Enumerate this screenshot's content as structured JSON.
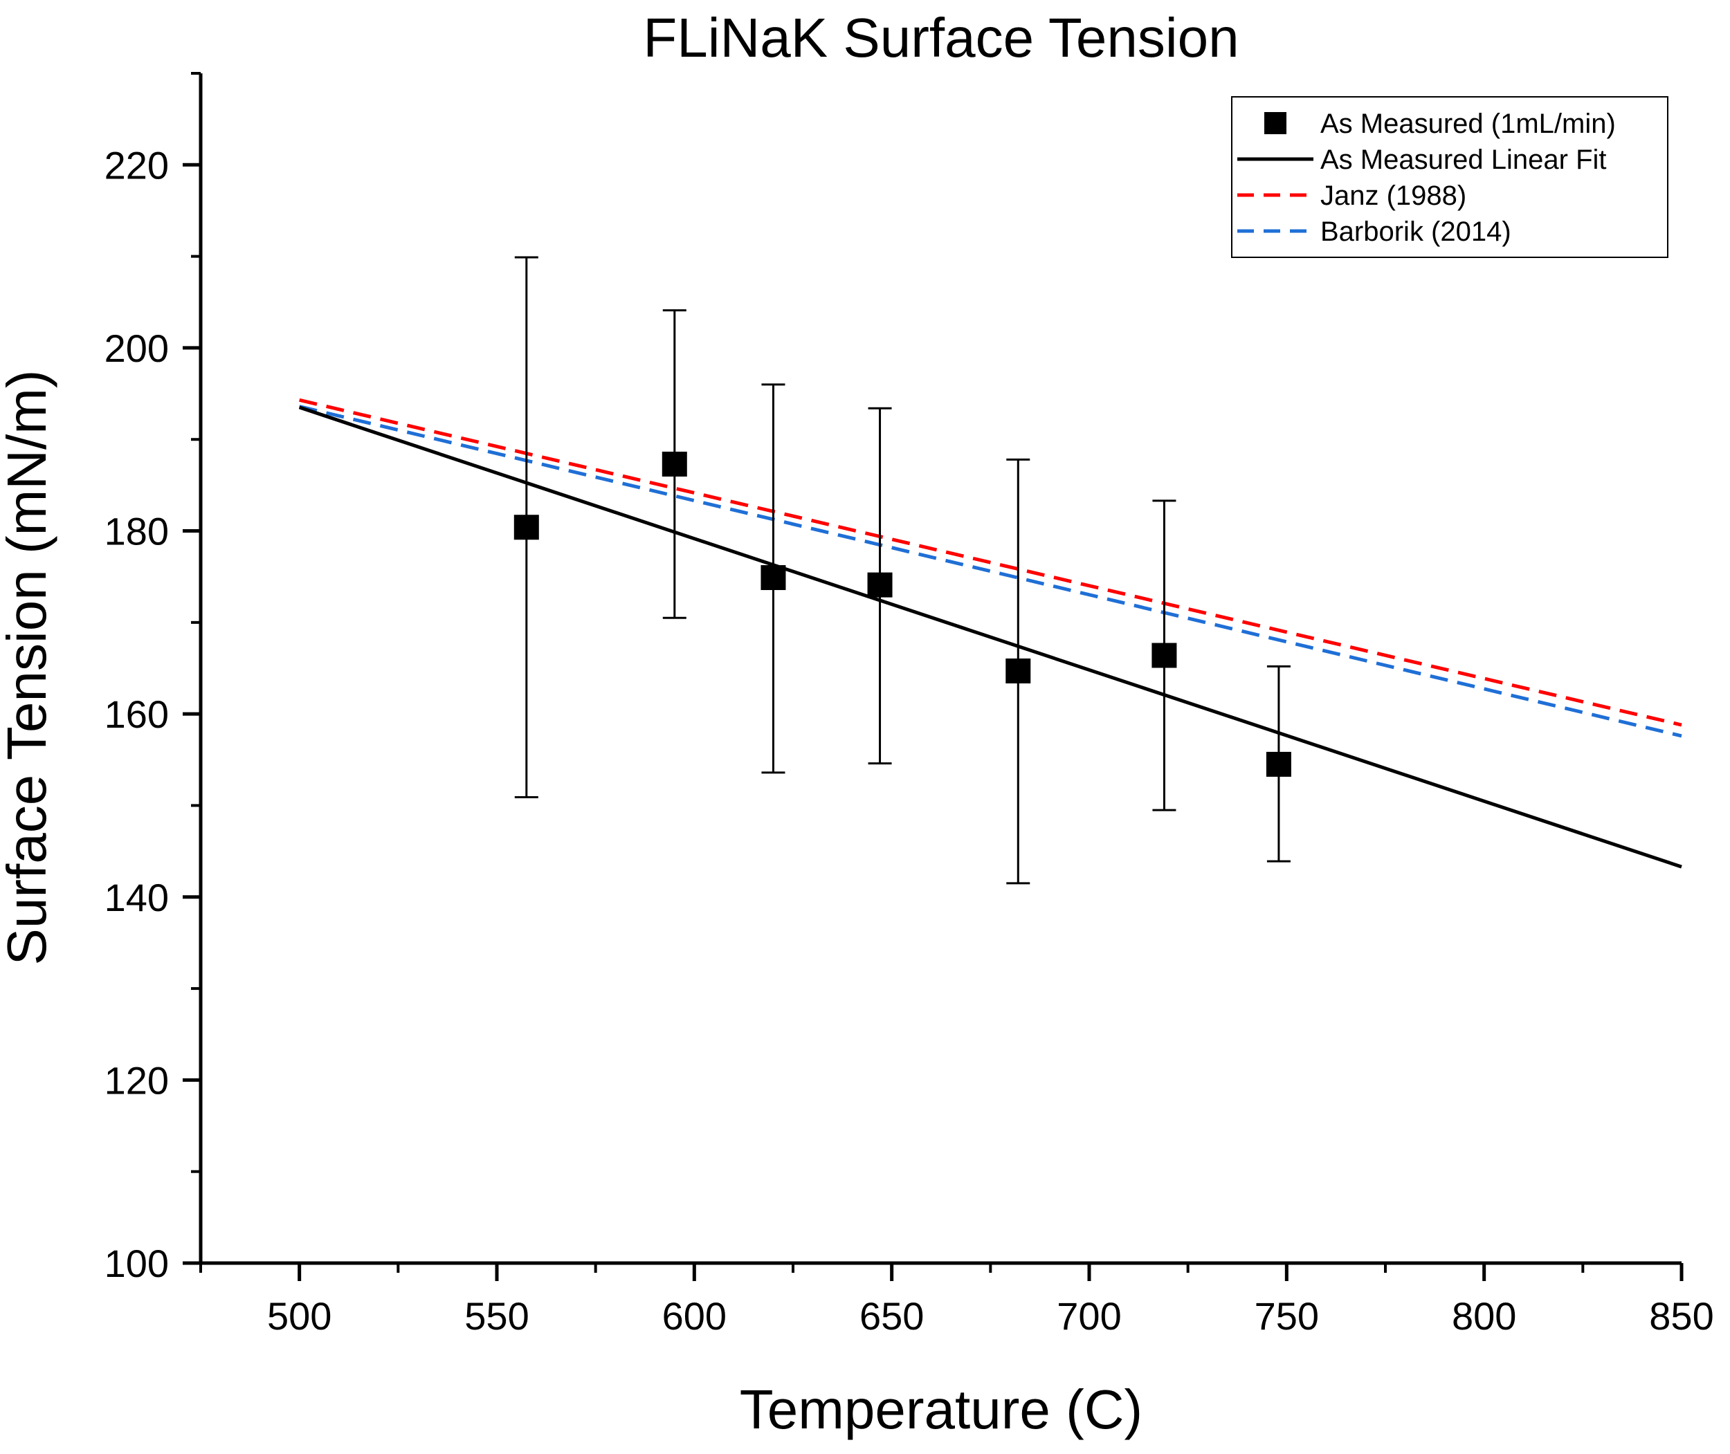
{
  "chart_data": {
    "type": "scatter",
    "title": "FLiNaK Surface Tension",
    "xlabel": "Temperature (C)",
    "ylabel": "Surface Tension (mN/m)",
    "xlim": [
      475,
      850
    ],
    "ylim": [
      100,
      230
    ],
    "xticks": [
      "500",
      "550",
      "600",
      "650",
      "700",
      "750",
      "800",
      "850"
    ],
    "yticks": [
      "100",
      "120",
      "140",
      "160",
      "180",
      "200",
      "220"
    ],
    "grid": false,
    "legend_position": "top-right",
    "series": [
      {
        "name": "As Measured (1mL/min)",
        "kind": "points",
        "color": "#000000",
        "points": [
          {
            "x": 557.5,
            "y": 180.4,
            "err_low": 150.9,
            "err_high": 209.9
          },
          {
            "x": 595,
            "y": 187.3,
            "err_low": 170.5,
            "err_high": 204.1
          },
          {
            "x": 620,
            "y": 174.9,
            "err_low": 153.6,
            "err_high": 196.0
          },
          {
            "x": 647,
            "y": 174.1,
            "err_low": 154.6,
            "err_high": 193.4
          },
          {
            "x": 682,
            "y": 164.7,
            "err_low": 141.5,
            "err_high": 187.8
          },
          {
            "x": 719,
            "y": 166.4,
            "err_low": 149.5,
            "err_high": 183.3
          },
          {
            "x": 748,
            "y": 154.5,
            "err_low": 143.9,
            "err_high": 165.2
          }
        ]
      },
      {
        "name": "As Measured Linear Fit",
        "kind": "line",
        "style": "solid",
        "color": "#000000",
        "x": [
          500,
          850
        ],
        "y": [
          193.5,
          143.3
        ]
      },
      {
        "name": "Janz (1988)",
        "kind": "line",
        "style": "dashed",
        "color": "#ff0000",
        "x": [
          500,
          850
        ],
        "y": [
          194.3,
          158.8
        ]
      },
      {
        "name": "Barborik (2014)",
        "kind": "line",
        "style": "dashed",
        "color": "#1f6fd6",
        "x": [
          500,
          850
        ],
        "y": [
          193.6,
          157.6
        ]
      }
    ]
  }
}
